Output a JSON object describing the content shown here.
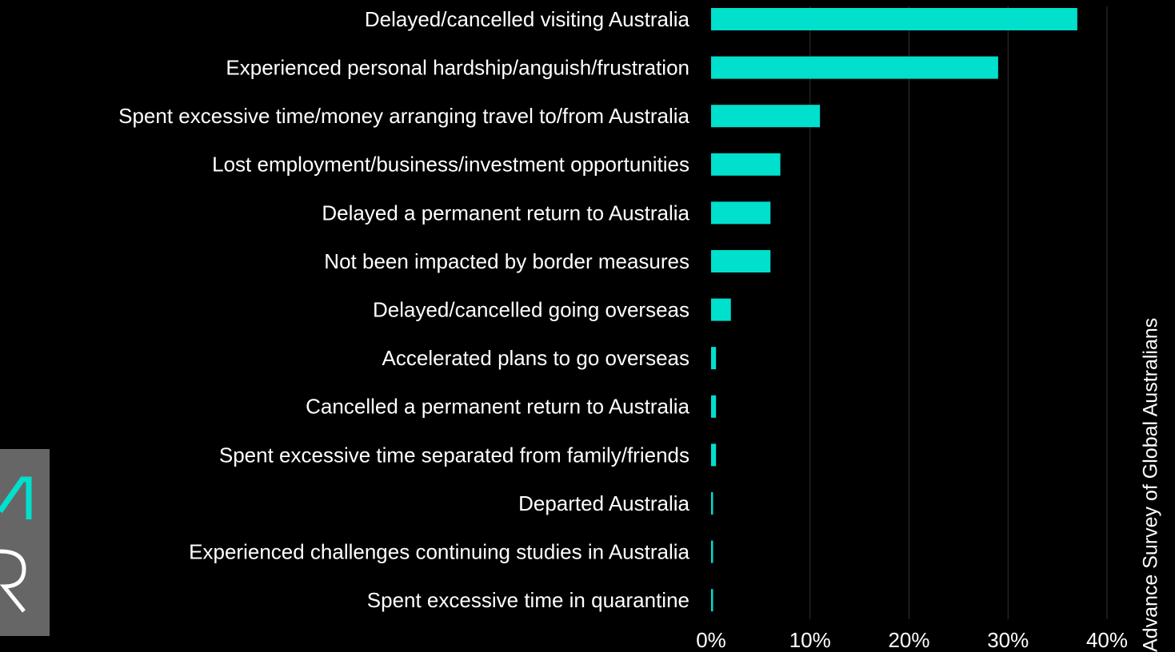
{
  "chart_data": {
    "type": "barh",
    "categories": [
      "Delayed/cancelled visiting Australia",
      "Experienced personal hardship/anguish/frustration",
      "Spent excessive time/money arranging travel to/from Australia",
      "Lost employment/business/investment opportunities",
      "Delayed a permanent return to Australia",
      "Not been impacted by border measures",
      "Delayed/cancelled going overseas",
      "Accelerated plans to go overseas",
      "Cancelled a permanent return to Australia",
      "Spent excessive time separated from family/friends",
      "Departed Australia",
      "Experienced challenges continuing studies in Australia",
      "Spent excessive time in quarantine"
    ],
    "values": [
      37,
      29,
      11,
      7,
      6,
      6,
      2,
      0.5,
      0.5,
      0.5,
      0.2,
      0.2,
      0.2
    ],
    "color": "#00e0cc",
    "xlim": [
      0,
      40
    ],
    "xticks": [
      {
        "value": 0,
        "label": "0%"
      },
      {
        "value": 10,
        "label": "10%"
      },
      {
        "value": 20,
        "label": "20%"
      },
      {
        "value": 30,
        "label": "30%"
      },
      {
        "value": 40,
        "label": "40%"
      }
    ],
    "grid": true,
    "source": "Advance Survey of Global Australians"
  }
}
